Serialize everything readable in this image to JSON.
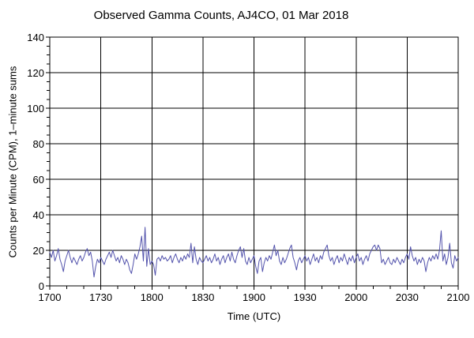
{
  "chart_data": {
    "type": "line",
    "title": "Observed Gamma Counts, AJ4CO, 01 Mar 2018",
    "xlabel": "Time (UTC)",
    "ylabel": "Counts per Minute (CPM), 1–minute sums",
    "x_tick_labels": [
      "1700",
      "1730",
      "1800",
      "1830",
      "1900",
      "1930",
      "2000",
      "2030",
      "2100"
    ],
    "x_major_step_minutes": 30,
    "x_minor_step_minutes": 10,
    "x_range_minutes": [
      0,
      240
    ],
    "y_tick_labels": [
      "0",
      "20",
      "40",
      "60",
      "80",
      "100",
      "120",
      "140"
    ],
    "ylim": [
      0,
      140
    ],
    "y_major_step": 20,
    "y_minor_step": 5,
    "grid": true,
    "legend": "none",
    "axis_color": "#000000",
    "line_color": "#5353ac",
    "series": [
      {
        "name": "Observed gamma counts",
        "x_unit": "minutes after 1700 UTC, 1-minute cadence",
        "values": [
          19,
          16,
          20,
          14,
          17,
          21,
          15,
          12,
          8,
          14,
          17,
          20,
          16,
          13,
          16,
          14,
          12,
          15,
          17,
          14,
          16,
          19,
          21,
          17,
          19,
          14,
          5,
          11,
          15,
          13,
          16,
          14,
          12,
          15,
          17,
          19,
          16,
          20,
          17,
          14,
          16,
          13,
          17,
          15,
          12,
          15,
          13,
          9,
          7,
          12,
          18,
          15,
          18,
          22,
          28,
          14,
          33,
          11,
          21,
          12,
          14,
          12,
          6,
          15,
          16,
          14,
          17,
          15,
          16,
          14,
          15,
          17,
          13,
          16,
          18,
          15,
          13,
          16,
          14,
          17,
          15,
          18,
          16,
          24,
          13,
          22,
          15,
          12,
          16,
          14,
          13,
          15,
          17,
          14,
          16,
          13,
          15,
          18,
          14,
          16,
          12,
          15,
          17,
          13,
          16,
          18,
          14,
          19,
          15,
          13,
          17,
          20,
          22,
          16,
          21,
          14,
          12,
          16,
          13,
          15,
          17,
          11,
          7,
          14,
          16,
          8,
          13,
          16,
          14,
          17,
          15,
          19,
          23,
          17,
          20,
          14,
          12,
          16,
          13,
          15,
          18,
          21,
          23,
          16,
          13,
          9,
          14,
          16,
          13,
          15,
          17,
          14,
          16,
          12,
          15,
          18,
          14,
          16,
          13,
          17,
          15,
          19,
          21,
          23,
          17,
          14,
          16,
          12,
          15,
          17,
          13,
          16,
          14,
          18,
          15,
          12,
          16,
          14,
          17,
          13,
          16,
          18,
          14,
          16,
          12,
          15,
          17,
          14,
          18,
          20,
          22,
          23,
          20,
          23,
          21,
          13,
          15,
          12,
          14,
          16,
          13,
          12,
          15,
          13,
          16,
          14,
          12,
          15,
          13,
          16,
          18,
          15,
          22,
          17,
          14,
          16,
          12,
          15,
          13,
          16,
          14,
          8,
          13,
          16,
          14,
          17,
          15,
          18,
          15,
          20,
          31,
          14,
          18,
          12,
          16,
          24,
          13,
          10,
          17,
          14,
          16
        ]
      }
    ]
  }
}
